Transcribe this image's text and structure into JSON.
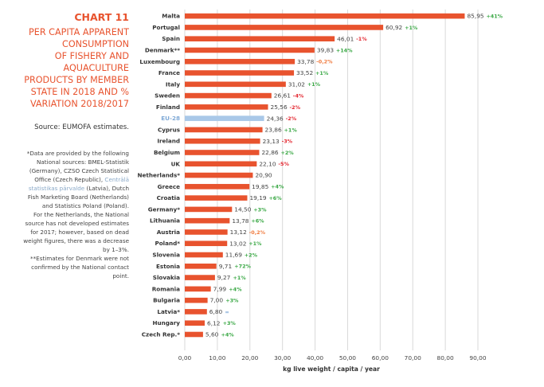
{
  "header": {
    "chart_number": "CHART 11",
    "title_lines": [
      "PER CAPITA APPARENT",
      "CONSUMPTION",
      "OF FISHERY AND",
      "AQUACULTURE",
      "PRODUCTS BY MEMBER",
      "STATE IN 2018 AND %",
      "VARIATION 2018/2017"
    ],
    "source": "Source: EUMOFA estimates."
  },
  "footnote": {
    "lines": [
      "*Data are provided by the following",
      "National sources: BMEL-Statistik",
      "(Germany), CZSO Czech Statistical",
      "Office (Czech Republic), Centrālā",
      "statistikas pārvalde (Latvia), Dutch",
      "Fish Marketing Board (Netherlands)",
      "and Statistics Poland (Poland).",
      "For the Netherlands, the National",
      "source has not developed estimates",
      "for 2017; however, based on dead",
      "weight figures, there was a decrease",
      "by 1–3%.",
      "**Estimates for Denmark were not",
      "confirmed by the National contact",
      "point."
    ]
  },
  "colors": {
    "bar": "#e8532e",
    "highlight_bar": "#a9c8e8",
    "highlight_label": "#7fa9d6",
    "positive": "#3aa845",
    "negative": "#e3262f",
    "neutral_negative": "#f07b3f",
    "stable": "#7fa9d6",
    "grid": "#d9d9d9",
    "title": "#e8532e"
  },
  "chart_data": {
    "type": "bar",
    "orientation": "horizontal",
    "title": "Per capita apparent consumption of fishery and aquaculture products by Member State in 2018 and % variation 2018/2017",
    "xlabel": "kg live weight / capita / year",
    "ylabel": "",
    "xlim": [
      0,
      90
    ],
    "xticks": [
      "0,00",
      "10,00",
      "20,00",
      "30,00",
      "40,00",
      "50,00",
      "60,00",
      "70,00",
      "80,00",
      "90,00"
    ],
    "grid": true,
    "legend": "none",
    "categories": [
      "Malta",
      "Portugal",
      "Spain",
      "Denmark**",
      "Luxembourg",
      "France",
      "Italy",
      "Sweden",
      "Finland",
      "EU-28",
      "Cyprus",
      "Ireland",
      "Belgium",
      "UK",
      "Netherlands*",
      "Greece",
      "Croatia",
      "Germany*",
      "Lithuania",
      "Austria",
      "Poland*",
      "Slovenia",
      "Estonia",
      "Slovakia",
      "Romania",
      "Bulgaria",
      "Latvia*",
      "Hungary",
      "Czech Rep.*"
    ],
    "values": [
      85.95,
      60.92,
      46.01,
      39.83,
      33.78,
      33.52,
      31.02,
      26.61,
      25.56,
      24.36,
      23.86,
      23.13,
      22.86,
      22.1,
      20.9,
      19.85,
      19.19,
      14.5,
      13.78,
      13.12,
      13.02,
      11.69,
      9.71,
      9.27,
      7.99,
      7.0,
      6.8,
      6.12,
      5.6
    ],
    "value_labels": [
      "85,95",
      "60,92",
      "46,01",
      "39,83",
      "33,78",
      "33,52",
      "31,02",
      "26,61",
      "25,56",
      "24,36",
      "23,86",
      "23,13",
      "22,86",
      "22,10",
      "20,90",
      "19,85",
      "19,19",
      "14,50",
      "13,78",
      "13,12",
      "13,02",
      "11,69",
      "9,71",
      "9,27",
      "7,99",
      "7,00",
      "6,80",
      "6,12",
      "5,60"
    ],
    "variation_labels": [
      "+41%",
      "+1%",
      "-1%",
      "+14%",
      "-0,2%",
      "+1%",
      "+1%",
      "-4%",
      "-2%",
      "-2%",
      "+1%",
      "-3%",
      "+2%",
      "-5%",
      "",
      "+4%",
      "+6%",
      "+3%",
      "+6%",
      "-0,2%",
      "+1%",
      "+2%",
      "+72%",
      "+1%",
      "+4%",
      "+3%",
      "=",
      "+3%",
      "+4%"
    ],
    "variation_types": [
      "pos",
      "pos",
      "neg",
      "pos",
      "neutral",
      "pos",
      "pos",
      "neg",
      "neg",
      "neg",
      "pos",
      "neg",
      "pos",
      "neg",
      "none",
      "pos",
      "pos",
      "pos",
      "pos",
      "neutral",
      "pos",
      "pos",
      "pos",
      "pos",
      "pos",
      "pos",
      "stable",
      "pos",
      "pos"
    ],
    "highlight": "EU-28"
  }
}
